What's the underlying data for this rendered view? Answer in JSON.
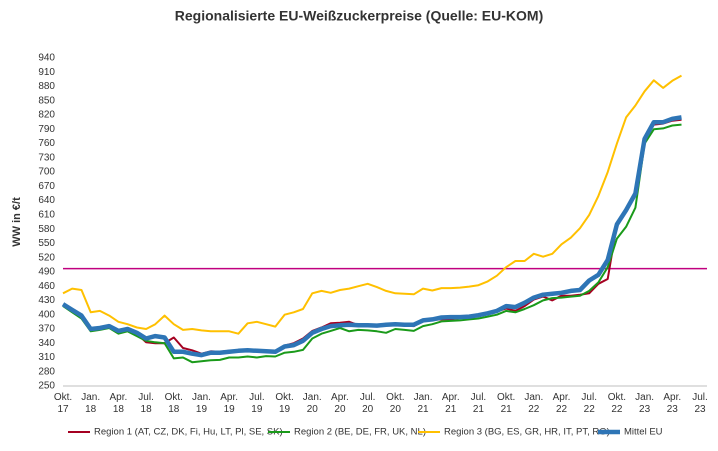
{
  "chart_data": {
    "type": "line",
    "title": "Regionalisierte EU-Weißzuckerpreise (Quelle: EU-KOM)",
    "y_label": "WW in €/t",
    "categories": [
      "Okt. 17",
      null,
      null,
      "Jan. 18",
      null,
      null,
      "Apr. 18",
      null,
      null,
      "Jul. 18",
      null,
      null,
      "Okt. 18",
      null,
      null,
      "Jan. 19",
      null,
      null,
      "Apr. 19",
      null,
      null,
      "Jul. 19",
      null,
      null,
      "Okt. 19",
      null,
      null,
      "Jan. 20",
      null,
      null,
      "Apr. 20",
      null,
      null,
      "Jul. 20",
      null,
      null,
      "Okt. 20",
      null,
      null,
      "Jan. 21",
      null,
      null,
      "Apr. 21",
      null,
      null,
      "Jul. 21",
      null,
      null,
      "Okt. 21",
      null,
      null,
      "Jan. 22",
      null,
      null,
      "Apr. 22",
      null,
      null,
      "Jul. 22",
      null,
      null,
      "Okt. 22",
      null,
      null,
      "Jan. 23",
      null,
      null,
      "Apr. 23",
      null,
      null,
      "Jul. 23"
    ],
    "series": [
      {
        "name": "Region 1 (AT, CZ, DK, Fi, Hu, LT, Pl, SE, SK)",
        "color": "#a50021",
        "width": 2,
        "values": [
          420,
          408,
          396,
          370,
          370,
          375,
          362,
          368,
          360,
          342,
          340,
          340,
          352,
          330,
          325,
          318,
          323,
          322,
          324,
          325,
          326,
          325,
          324,
          322,
          335,
          340,
          350,
          366,
          373,
          382,
          383,
          385,
          378,
          378,
          376,
          380,
          378,
          377,
          376,
          387,
          389,
          390,
          390,
          393,
          395,
          398,
          402,
          407,
          413,
          408,
          418,
          432,
          438,
          430,
          440,
          440,
          442,
          445,
          465,
          475,
          590,
          618,
          650,
          765,
          800,
          802,
          808,
          810,
          null,
          null
        ]
      },
      {
        "name": "Region 2 (BE, DE, FR, UK, NL)",
        "color": "#1a9a1a",
        "width": 2,
        "values": [
          418,
          405,
          392,
          365,
          368,
          372,
          360,
          365,
          355,
          345,
          342,
          340,
          308,
          310,
          300,
          302,
          304,
          305,
          310,
          310,
          312,
          310,
          313,
          312,
          320,
          322,
          326,
          350,
          360,
          366,
          372,
          365,
          368,
          367,
          365,
          362,
          370,
          368,
          366,
          376,
          380,
          386,
          387,
          388,
          390,
          392,
          396,
          400,
          408,
          405,
          412,
          420,
          430,
          435,
          436,
          438,
          440,
          450,
          468,
          500,
          560,
          585,
          625,
          760,
          790,
          792,
          798,
          800,
          null,
          null
        ]
      },
      {
        "name": "Region 3 (BG, ES, GR, HR, IT, PT, RO)",
        "color": "#ffc000",
        "width": 2,
        "values": [
          445,
          455,
          452,
          405,
          408,
          398,
          385,
          380,
          373,
          370,
          380,
          398,
          380,
          368,
          370,
          367,
          365,
          365,
          365,
          360,
          382,
          385,
          380,
          375,
          400,
          405,
          412,
          445,
          450,
          446,
          452,
          455,
          460,
          465,
          458,
          450,
          445,
          444,
          443,
          455,
          451,
          456,
          456,
          457,
          459,
          462,
          470,
          482,
          500,
          513,
          513,
          528,
          522,
          528,
          548,
          562,
          582,
          610,
          650,
          700,
          760,
          815,
          840,
          870,
          893,
          877,
          892,
          903,
          null,
          null
        ]
      },
      {
        "name": "Mittel EU",
        "color": "#2e75b6",
        "width": 4.5,
        "values": [
          422,
          410,
          398,
          370,
          372,
          376,
          366,
          370,
          362,
          350,
          355,
          352,
          322,
          322,
          318,
          315,
          320,
          320,
          322,
          324,
          325,
          324,
          323,
          322,
          333,
          336,
          345,
          362,
          370,
          376,
          378,
          379,
          378,
          378,
          377,
          379,
          380,
          379,
          379,
          388,
          390,
          394,
          395,
          395,
          396,
          399,
          403,
          408,
          418,
          416,
          425,
          436,
          442,
          444,
          446,
          450,
          452,
          472,
          484,
          515,
          590,
          620,
          655,
          770,
          805,
          805,
          812,
          815,
          null,
          null
        ]
      }
    ],
    "reference_line": {
      "value": 497,
      "color": "#c0007f"
    },
    "ylim": [
      250,
      940
    ],
    "yticks": [
      250,
      280,
      310,
      340,
      370,
      400,
      430,
      460,
      490,
      520,
      550,
      580,
      610,
      640,
      670,
      700,
      730,
      760,
      790,
      820,
      850,
      880,
      910,
      940
    ],
    "grid": false,
    "legend": "bottom"
  }
}
